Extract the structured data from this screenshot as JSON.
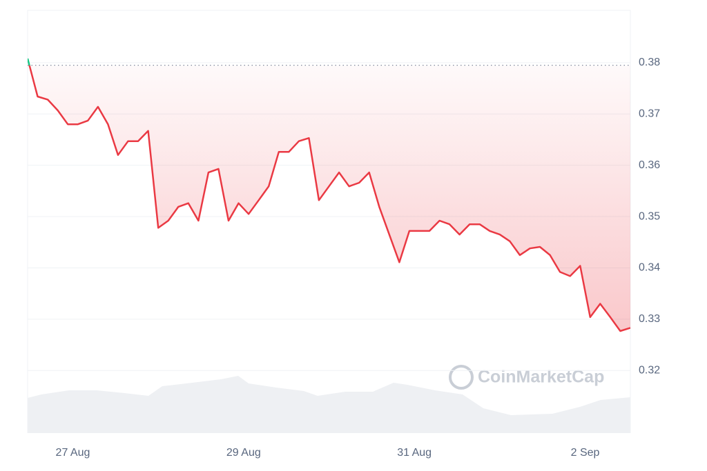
{
  "chart_data": {
    "type": "line",
    "watermark": "CoinMarketCap",
    "values": [
      0.3808,
      0.3734,
      0.3728,
      0.3707,
      0.368,
      0.368,
      0.3687,
      0.3714,
      0.368,
      0.362,
      0.3647,
      0.3647,
      0.3667,
      0.3478,
      0.3492,
      0.3519,
      0.3526,
      0.3492,
      0.3586,
      0.3593,
      0.3492,
      0.3526,
      0.3505,
      0.3532,
      0.3559,
      0.3626,
      0.3626,
      0.3647,
      0.3653,
      0.3532,
      0.3559,
      0.3586,
      0.3559,
      0.3566,
      0.3586,
      0.3519,
      0.3465,
      0.3411,
      0.3472,
      0.3472,
      0.3472,
      0.3492,
      0.3485,
      0.3465,
      0.3485,
      0.3485,
      0.3472,
      0.3465,
      0.3452,
      0.3425,
      0.3438,
      0.3441,
      0.3425,
      0.3392,
      0.3384,
      0.3404,
      0.3304,
      0.333,
      0.3304,
      0.3277,
      0.3283
    ],
    "color": "#ea3943",
    "up_color": "#16c784",
    "reference": 0.3795,
    "xlim": [
      0,
      60
    ],
    "xticks": [
      {
        "value": 4.5,
        "label": "27 Aug"
      },
      {
        "value": 21.5,
        "label": "29 Aug"
      },
      {
        "value": 38.5,
        "label": "31 Aug"
      },
      {
        "value": 55.5,
        "label": "2 Sep"
      }
    ],
    "ylim": [
      0.3078,
      0.3902
    ],
    "yticks": [
      0.32,
      0.33,
      0.34,
      0.35,
      0.36,
      0.37,
      0.38
    ],
    "grid": true
  }
}
